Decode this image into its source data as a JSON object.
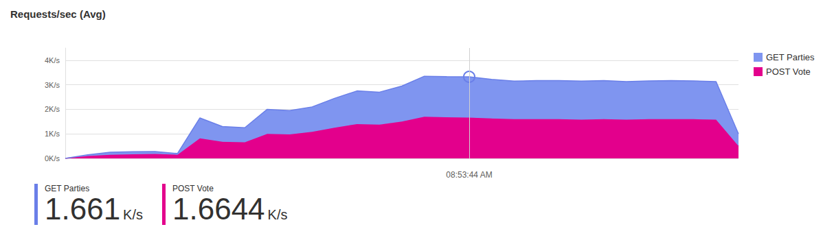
{
  "chart_data": {
    "type": "area",
    "title": "Requests/sec (Avg)",
    "categories": [
      null,
      null,
      null,
      null,
      null,
      null,
      null,
      null,
      null,
      null,
      null,
      null,
      null,
      null,
      null,
      null,
      null,
      null,
      "08:53:44 AM",
      null,
      null,
      null,
      null,
      null,
      null,
      null,
      null,
      null,
      null,
      null,
      null
    ],
    "series": [
      {
        "name": "GET Parties",
        "color": "#7f95f0",
        "values": [
          0,
          0.05,
          0.1,
          0.1,
          0.1,
          0.05,
          0.83,
          0.62,
          0.59,
          1.0,
          0.97,
          1.02,
          1.2,
          1.35,
          1.32,
          1.45,
          1.65,
          1.65,
          1.661,
          1.59,
          1.55,
          1.57,
          1.57,
          1.57,
          1.57,
          1.55,
          1.56,
          1.57,
          1.56,
          1.55,
          0.5
        ]
      },
      {
        "name": "POST Vote",
        "color": "#e3008c",
        "values": [
          0,
          0.1,
          0.15,
          0.17,
          0.18,
          0.15,
          0.82,
          0.68,
          0.66,
          1.0,
          0.98,
          1.08,
          1.25,
          1.4,
          1.38,
          1.5,
          1.7,
          1.68,
          1.6644,
          1.63,
          1.6,
          1.6,
          1.6,
          1.58,
          1.6,
          1.58,
          1.6,
          1.6,
          1.6,
          1.58,
          0.5
        ]
      }
    ],
    "ylim": [
      0,
      4.5
    ],
    "yticks": [
      {
        "value": 0,
        "label": "0K/s"
      },
      {
        "value": 1,
        "label": "1K/s"
      },
      {
        "value": 2,
        "label": "2K/s"
      },
      {
        "value": 3,
        "label": "3K/s"
      },
      {
        "value": 4,
        "label": "4K/s"
      }
    ],
    "stacked": true,
    "grid": true,
    "legend": "right",
    "summary": [
      {
        "name": "GET Parties",
        "value": 1.661,
        "unit": "K/s"
      },
      {
        "name": "POST Vote",
        "value": 1.6644,
        "unit": "K/s"
      }
    ]
  }
}
